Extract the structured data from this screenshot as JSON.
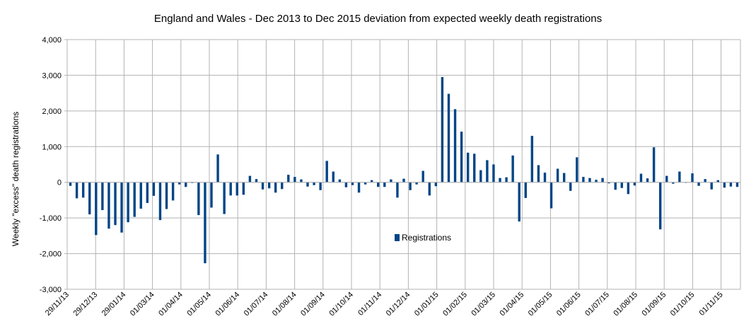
{
  "chart_data": {
    "type": "bar",
    "title": "England and Wales - Dec 2013 to Dec 2015 deviation from expected weekly death registrations",
    "xlabel": "",
    "ylabel": "Weekly \"excess\" death registrations",
    "ylim": [
      -3000,
      4000
    ],
    "yticks": [
      "4,000",
      "3,000",
      "2,000",
      "1,000",
      "0",
      "-1,000",
      "-2,000",
      "-3,000"
    ],
    "ytick_values": [
      4000,
      3000,
      2000,
      1000,
      0,
      -1000,
      -2000,
      -3000
    ],
    "xtick_labels": [
      "29/11/13",
      "29/12/13",
      "29/01/14",
      "01/03/14",
      "01/04/14",
      "01/05/14",
      "01/06/14",
      "01/07/14",
      "01/08/14",
      "01/09/14",
      "01/10/14",
      "01/11/14",
      "01/12/14",
      "01/01/15",
      "01/02/15",
      "01/03/15",
      "01/04/15",
      "01/05/15",
      "01/06/15",
      "01/07/15",
      "01/08/15",
      "01/09/15",
      "01/10/15",
      "01/11/15"
    ],
    "grid": true,
    "legend_position": "center",
    "series": [
      {
        "name": "Registrations",
        "color": "#004586",
        "values": [
          -100,
          -450,
          -430,
          -900,
          -1480,
          -780,
          -1300,
          -1200,
          -1410,
          -1120,
          -970,
          -740,
          -580,
          -380,
          -1060,
          -750,
          -510,
          -60,
          -130,
          -20,
          -920,
          -2270,
          -710,
          780,
          -890,
          -370,
          -370,
          -350,
          180,
          90,
          -200,
          -170,
          -290,
          -190,
          210,
          150,
          80,
          -120,
          -80,
          -220,
          600,
          300,
          80,
          -140,
          -80,
          -290,
          -60,
          60,
          -130,
          -130,
          80,
          -430,
          100,
          -220,
          -60,
          320,
          -370,
          -110,
          2950,
          2480,
          2050,
          1420,
          830,
          800,
          340,
          620,
          500,
          120,
          140,
          750,
          -1100,
          -440,
          1300,
          480,
          270,
          -730,
          380,
          260,
          -240,
          700,
          150,
          120,
          70,
          120,
          -30,
          -210,
          -160,
          -330,
          -90,
          240,
          110,
          980,
          -1320,
          180,
          -40,
          300,
          0,
          250,
          -100,
          90,
          -200,
          60,
          -150,
          -120,
          -130
        ]
      }
    ]
  }
}
